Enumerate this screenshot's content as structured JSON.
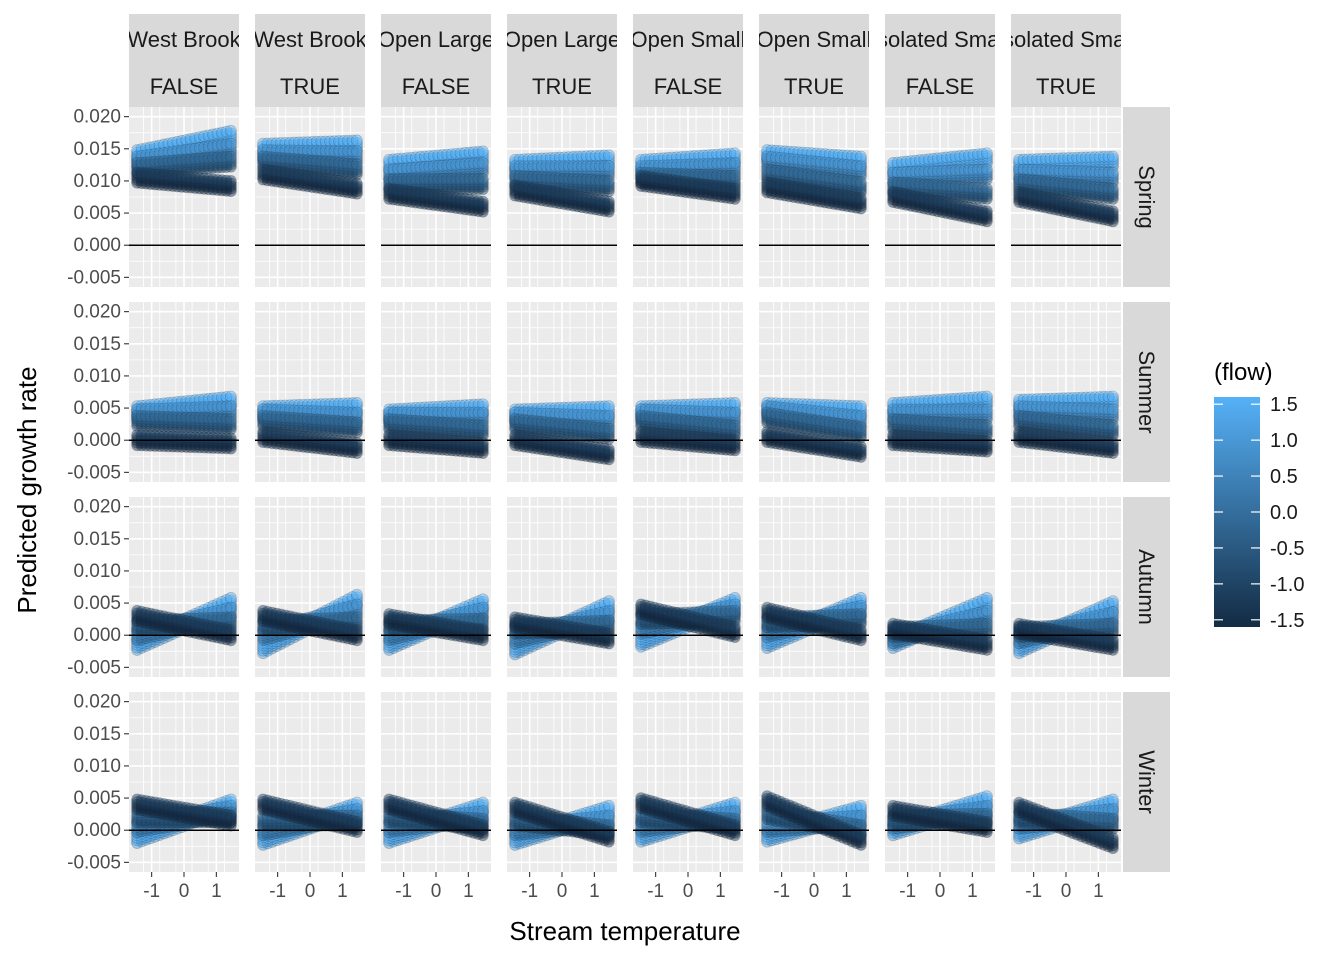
{
  "chart_data": {
    "type": "scatter",
    "xlabel": "Stream temperature",
    "ylabel": "Predicted growth rate",
    "xlim": [
      -1.7,
      1.7
    ],
    "ylim": [
      -0.0065,
      0.0215
    ],
    "x_ticks": [
      -1,
      0,
      1
    ],
    "x_tick_labels": [
      "-1",
      "0",
      "1"
    ],
    "y_ticks": [
      -0.005,
      0.0,
      0.005,
      0.01,
      0.015,
      0.02
    ],
    "y_tick_labels": [
      "-0.005",
      "0.000",
      "0.005",
      "0.010",
      "0.015",
      "0.020"
    ],
    "reference_line_y": 0,
    "grid": true,
    "columns": [
      {
        "river": "West Brook",
        "flag": "FALSE"
      },
      {
        "river": "West Brook",
        "flag": "TRUE"
      },
      {
        "river": "Open Large",
        "flag": "FALSE"
      },
      {
        "river": "Open Large",
        "flag": "TRUE"
      },
      {
        "river": "Open Small",
        "flag": "FALSE"
      },
      {
        "river": "Open Small",
        "flag": "TRUE"
      },
      {
        "river": "Isolated Small",
        "flag": "FALSE"
      },
      {
        "river": "Isolated Small",
        "flag": "TRUE"
      }
    ],
    "rows": [
      "Spring",
      "Summer",
      "Autumn",
      "Winter"
    ],
    "legend": {
      "title": "(flow)",
      "placement": "right",
      "labels": [
        "1.5",
        "1.0",
        "0.5",
        "0.0",
        "-0.5",
        "-1.0",
        "-1.5"
      ],
      "values": [
        1.5,
        1.0,
        0.5,
        0.0,
        -0.5,
        -1.0,
        -1.5
      ],
      "color_low": "#132B43",
      "color_high": "#56B1F7"
    },
    "bands": [
      [
        [
          {
            "flow": 1.5,
            "y0": 0.014,
            "y1": 0.017
          },
          {
            "flow": 0.5,
            "y0": 0.013,
            "y1": 0.015
          },
          {
            "flow": -0.5,
            "y0": 0.012,
            "y1": 0.013
          },
          {
            "flow": -1.5,
            "y0": 0.0105,
            "y1": 0.0092
          }
        ],
        [
          {
            "flow": 1.5,
            "y0": 0.015,
            "y1": 0.0155
          },
          {
            "flow": 0.5,
            "y0": 0.014,
            "y1": 0.0138
          },
          {
            "flow": -0.5,
            "y0": 0.013,
            "y1": 0.0118
          },
          {
            "flow": -1.5,
            "y0": 0.011,
            "y1": 0.0088
          }
        ],
        [
          {
            "flow": 1.5,
            "y0": 0.0125,
            "y1": 0.0138
          },
          {
            "flow": 0.5,
            "y0": 0.011,
            "y1": 0.012
          },
          {
            "flow": -0.5,
            "y0": 0.0095,
            "y1": 0.0095
          },
          {
            "flow": -1.5,
            "y0": 0.008,
            "y1": 0.006
          }
        ],
        [
          {
            "flow": 1.5,
            "y0": 0.0125,
            "y1": 0.0132
          },
          {
            "flow": 0.5,
            "y0": 0.0115,
            "y1": 0.0115
          },
          {
            "flow": -0.5,
            "y0": 0.01,
            "y1": 0.0092
          },
          {
            "flow": -1.5,
            "y0": 0.0085,
            "y1": 0.006
          }
        ],
        [
          {
            "flow": 1.5,
            "y0": 0.0125,
            "y1": 0.0135
          },
          {
            "flow": 0.5,
            "y0": 0.0115,
            "y1": 0.012
          },
          {
            "flow": -0.5,
            "y0": 0.0105,
            "y1": 0.01
          },
          {
            "flow": -1.5,
            "y0": 0.01,
            "y1": 0.008
          }
        ],
        [
          {
            "flow": 1.5,
            "y0": 0.014,
            "y1": 0.013
          },
          {
            "flow": 0.5,
            "y0": 0.013,
            "y1": 0.0115
          },
          {
            "flow": -0.5,
            "y0": 0.011,
            "y1": 0.009
          },
          {
            "flow": -1.5,
            "y0": 0.009,
            "y1": 0.0065
          }
        ],
        [
          {
            "flow": 1.5,
            "y0": 0.012,
            "y1": 0.0135
          },
          {
            "flow": 0.5,
            "y0": 0.0105,
            "y1": 0.011
          },
          {
            "flow": -0.5,
            "y0": 0.009,
            "y1": 0.008
          },
          {
            "flow": -1.5,
            "y0": 0.0075,
            "y1": 0.0045
          }
        ],
        [
          {
            "flow": 1.5,
            "y0": 0.0125,
            "y1": 0.013
          },
          {
            "flow": 0.5,
            "y0": 0.011,
            "y1": 0.0105
          },
          {
            "flow": -0.5,
            "y0": 0.0095,
            "y1": 0.008
          },
          {
            "flow": -1.5,
            "y0": 0.0075,
            "y1": 0.0045
          }
        ]
      ],
      [
        [
          {
            "flow": 1.5,
            "y0": 0.0045,
            "y1": 0.006
          },
          {
            "flow": 0.5,
            "y0": 0.004,
            "y1": 0.0045
          },
          {
            "flow": -0.5,
            "y0": 0.003,
            "y1": 0.0025
          },
          {
            "flow": -1.5,
            "y0": 0.0,
            "y1": -0.0005
          }
        ],
        [
          {
            "flow": 1.5,
            "y0": 0.0045,
            "y1": 0.005
          },
          {
            "flow": 0.5,
            "y0": 0.004,
            "y1": 0.0035
          },
          {
            "flow": -0.5,
            "y0": 0.003,
            "y1": 0.002
          },
          {
            "flow": -1.5,
            "y0": 0.0005,
            "y1": -0.0012
          }
        ],
        [
          {
            "flow": 1.5,
            "y0": 0.004,
            "y1": 0.0048
          },
          {
            "flow": 0.5,
            "y0": 0.0035,
            "y1": 0.0035
          },
          {
            "flow": -0.5,
            "y0": 0.0025,
            "y1": 0.0015
          },
          {
            "flow": -1.5,
            "y0": 0.0,
            "y1": -0.0012
          }
        ],
        [
          {
            "flow": 1.5,
            "y0": 0.004,
            "y1": 0.0045
          },
          {
            "flow": 0.5,
            "y0": 0.0035,
            "y1": 0.003
          },
          {
            "flow": -0.5,
            "y0": 0.0025,
            "y1": 0.001
          },
          {
            "flow": -1.5,
            "y0": 0.0,
            "y1": -0.0022
          }
        ],
        [
          {
            "flow": 1.5,
            "y0": 0.0045,
            "y1": 0.005
          },
          {
            "flow": 0.5,
            "y0": 0.004,
            "y1": 0.0035
          },
          {
            "flow": -0.5,
            "y0": 0.003,
            "y1": 0.0015
          },
          {
            "flow": -1.5,
            "y0": 0.0005,
            "y1": -0.0008
          }
        ],
        [
          {
            "flow": 1.5,
            "y0": 0.005,
            "y1": 0.0045
          },
          {
            "flow": 0.5,
            "y0": 0.0045,
            "y1": 0.003
          },
          {
            "flow": -0.5,
            "y0": 0.0035,
            "y1": 0.0012
          },
          {
            "flow": -1.5,
            "y0": 0.0005,
            "y1": -0.0018
          }
        ],
        [
          {
            "flow": 1.5,
            "y0": 0.005,
            "y1": 0.006
          },
          {
            "flow": 0.5,
            "y0": 0.004,
            "y1": 0.004
          },
          {
            "flow": -0.5,
            "y0": 0.0025,
            "y1": 0.0015
          },
          {
            "flow": -1.5,
            "y0": 0.0,
            "y1": -0.001
          }
        ],
        [
          {
            "flow": 1.5,
            "y0": 0.0055,
            "y1": 0.006
          },
          {
            "flow": 0.5,
            "y0": 0.0045,
            "y1": 0.004
          },
          {
            "flow": -0.5,
            "y0": 0.003,
            "y1": 0.0015
          },
          {
            "flow": -1.5,
            "y0": 0.0005,
            "y1": -0.0012
          }
        ]
      ],
      [
        [
          {
            "flow": 1.5,
            "y0": -0.0015,
            "y1": 0.005
          },
          {
            "flow": 0.5,
            "y0": 0.0,
            "y1": 0.0035
          },
          {
            "flow": -0.5,
            "y0": 0.0015,
            "y1": 0.002
          },
          {
            "flow": -1.5,
            "y0": 0.003,
            "y1": 0.0
          }
        ],
        [
          {
            "flow": 1.5,
            "y0": -0.002,
            "y1": 0.0055
          },
          {
            "flow": 0.5,
            "y0": 0.0,
            "y1": 0.004
          },
          {
            "flow": -0.5,
            "y0": 0.0015,
            "y1": 0.002
          },
          {
            "flow": -1.5,
            "y0": 0.003,
            "y1": 0.0
          }
        ],
        [
          {
            "flow": 1.5,
            "y0": -0.0015,
            "y1": 0.0048
          },
          {
            "flow": 0.5,
            "y0": 0.0,
            "y1": 0.0035
          },
          {
            "flow": -0.5,
            "y0": 0.0015,
            "y1": 0.0018
          },
          {
            "flow": -1.5,
            "y0": 0.0025,
            "y1": 0.0
          }
        ],
        [
          {
            "flow": 1.5,
            "y0": -0.0022,
            "y1": 0.0045
          },
          {
            "flow": 0.5,
            "y0": -0.0005,
            "y1": 0.003
          },
          {
            "flow": -0.5,
            "y0": 0.001,
            "y1": 0.0015
          },
          {
            "flow": -1.5,
            "y0": 0.002,
            "y1": -0.0005
          }
        ],
        [
          {
            "flow": 1.5,
            "y0": -0.001,
            "y1": 0.005
          },
          {
            "flow": 0.5,
            "y0": 0.001,
            "y1": 0.004
          },
          {
            "flow": -0.5,
            "y0": 0.0025,
            "y1": 0.003
          },
          {
            "flow": -1.5,
            "y0": 0.004,
            "y1": 0.0005
          }
        ],
        [
          {
            "flow": 1.5,
            "y0": -0.0012,
            "y1": 0.005
          },
          {
            "flow": 0.5,
            "y0": 0.0005,
            "y1": 0.0038
          },
          {
            "flow": -0.5,
            "y0": 0.002,
            "y1": 0.0025
          },
          {
            "flow": -1.5,
            "y0": 0.0035,
            "y1": 0.0
          }
        ],
        [
          {
            "flow": 1.5,
            "y0": -0.0012,
            "y1": 0.005
          },
          {
            "flow": 0.5,
            "y0": -0.0005,
            "y1": 0.003
          },
          {
            "flow": -0.5,
            "y0": 0.0005,
            "y1": 0.001
          },
          {
            "flow": -1.5,
            "y0": 0.001,
            "y1": -0.0015
          }
        ],
        [
          {
            "flow": 1.5,
            "y0": -0.002,
            "y1": 0.0045
          },
          {
            "flow": 0.5,
            "y0": -0.0005,
            "y1": 0.0028
          },
          {
            "flow": -0.5,
            "y0": 0.0005,
            "y1": 0.001
          },
          {
            "flow": -1.5,
            "y0": 0.001,
            "y1": -0.0015
          }
        ]
      ],
      [
        [
          {
            "flow": 1.5,
            "y0": -0.0012,
            "y1": 0.004
          },
          {
            "flow": 0.5,
            "y0": 0.0005,
            "y1": 0.003
          },
          {
            "flow": -0.5,
            "y0": 0.002,
            "y1": 0.002
          },
          {
            "flow": -1.5,
            "y0": 0.004,
            "y1": 0.0015
          }
        ],
        [
          {
            "flow": 1.5,
            "y0": -0.0015,
            "y1": 0.0035
          },
          {
            "flow": 0.5,
            "y0": 0.0,
            "y1": 0.0025
          },
          {
            "flow": -0.5,
            "y0": 0.0015,
            "y1": 0.0015
          },
          {
            "flow": -1.5,
            "y0": 0.004,
            "y1": 0.0005
          }
        ],
        [
          {
            "flow": 1.5,
            "y0": -0.0012,
            "y1": 0.0035
          },
          {
            "flow": 0.5,
            "y0": 0.0005,
            "y1": 0.0022
          },
          {
            "flow": -0.5,
            "y0": 0.002,
            "y1": 0.001
          },
          {
            "flow": -1.5,
            "y0": 0.004,
            "y1": 0.0
          }
        ],
        [
          {
            "flow": 1.5,
            "y0": -0.0015,
            "y1": 0.003
          },
          {
            "flow": 0.5,
            "y0": 0.0,
            "y1": 0.0015
          },
          {
            "flow": -0.5,
            "y0": 0.0015,
            "y1": 0.0
          },
          {
            "flow": -1.5,
            "y0": 0.0035,
            "y1": -0.001
          }
        ],
        [
          {
            "flow": 1.5,
            "y0": -0.001,
            "y1": 0.0035
          },
          {
            "flow": 0.5,
            "y0": 0.0005,
            "y1": 0.0022
          },
          {
            "flow": -0.5,
            "y0": 0.002,
            "y1": 0.001
          },
          {
            "flow": -1.5,
            "y0": 0.0042,
            "y1": 0.0
          }
        ],
        [
          {
            "flow": 1.5,
            "y0": -0.001,
            "y1": 0.003
          },
          {
            "flow": 0.5,
            "y0": 0.0005,
            "y1": 0.0015
          },
          {
            "flow": -0.5,
            "y0": 0.0025,
            "y1": 0.0
          },
          {
            "flow": -1.5,
            "y0": 0.0045,
            "y1": -0.0015
          }
        ],
        [
          {
            "flow": 1.5,
            "y0": 0.0,
            "y1": 0.0045
          },
          {
            "flow": 0.5,
            "y0": 0.001,
            "y1": 0.003
          },
          {
            "flow": -0.5,
            "y0": 0.0015,
            "y1": 0.0018
          },
          {
            "flow": -1.5,
            "y0": 0.003,
            "y1": 0.0005
          }
        ],
        [
          {
            "flow": 1.5,
            "y0": -0.0005,
            "y1": 0.004
          },
          {
            "flow": 0.5,
            "y0": 0.001,
            "y1": 0.0025
          },
          {
            "flow": -0.5,
            "y0": 0.002,
            "y1": 0.001
          },
          {
            "flow": -1.5,
            "y0": 0.0035,
            "y1": -0.002
          }
        ]
      ]
    ]
  }
}
